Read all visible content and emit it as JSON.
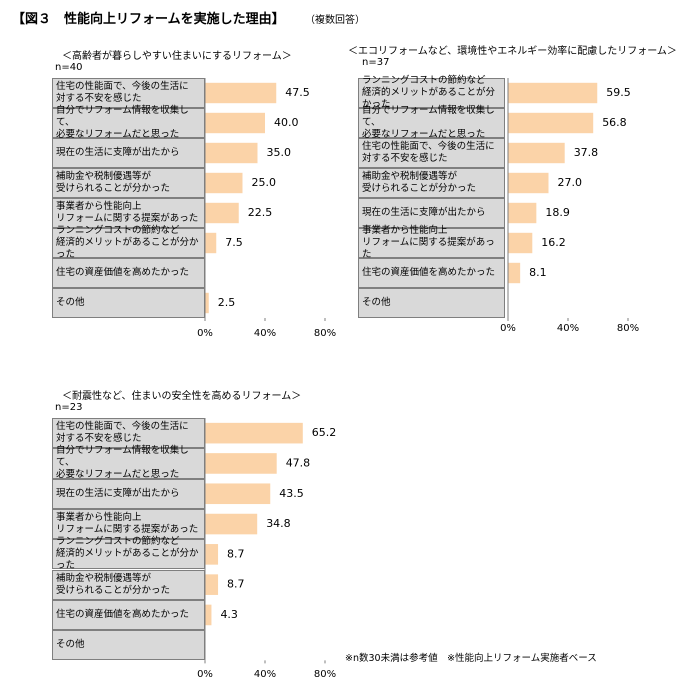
{
  "title": "【図３　性能向上リフォームを実施した理由】",
  "note": "（複数回答）",
  "footnote": "※n数30未満は参考値　※性能向上リフォーム実施者ベース",
  "chart_data": [
    {
      "type": "bar",
      "orientation": "horizontal",
      "subtitle": "＜高齢者が暮らしやすい住まいにするリフォーム＞",
      "n_label": "n=40",
      "categories": [
        "住宅の性能面で、今後の生活に\n対する不安を感じた",
        "自分でリフォーム情報を収集して、\n必要なリフォームだと思った",
        "現在の生活に支障が出たから",
        "補助金や税制優遇等が\n受けられることが分かった",
        "事業者から性能向上\nリフォームに関する提案があった",
        "ランニングコストの節約など\n経済的メリットがあることが分かった",
        "住宅の資産価値を高めたかった",
        "その他"
      ],
      "values": [
        47.5,
        40.0,
        35.0,
        25.0,
        22.5,
        7.5,
        null,
        2.5
      ],
      "value_labels": [
        "47.5",
        "40.0",
        "35.0",
        "25.0",
        "22.5",
        "7.5",
        null,
        "2.5"
      ],
      "color": "#fbd3a8",
      "xlim": [
        0,
        80
      ],
      "xticks": [
        {
          "value": 0,
          "label": "0%"
        },
        {
          "value": 40,
          "label": "40%"
        },
        {
          "value": 80,
          "label": "80%"
        }
      ]
    },
    {
      "type": "bar",
      "orientation": "horizontal",
      "subtitle": "＜エコリフォームなど、環境性やエネルギー効率に配慮したリフォーム＞",
      "n_label": "n=37",
      "categories": [
        "ランニングコストの節約など\n経済的メリットがあることが分かった",
        "自分でリフォーム情報を収集して、\n必要なリフォームだと思った",
        "住宅の性能面で、今後の生活に\n対する不安を感じた",
        "補助金や税制優遇等が\n受けられることが分かった",
        "現在の生活に支障が出たから",
        "事業者から性能向上\nリフォームに関する提案があった",
        "住宅の資産価値を高めたかった",
        "その他"
      ],
      "values": [
        59.5,
        56.8,
        37.8,
        27.0,
        18.9,
        16.2,
        8.1,
        null
      ],
      "value_labels": [
        "59.5",
        "56.8",
        "37.8",
        "27.0",
        "18.9",
        "16.2",
        "8.1",
        null
      ],
      "color": "#fbd3a8",
      "xlim": [
        0,
        80
      ],
      "xticks": [
        {
          "value": 0,
          "label": "0%"
        },
        {
          "value": 40,
          "label": "40%"
        },
        {
          "value": 80,
          "label": "80%"
        }
      ]
    },
    {
      "type": "bar",
      "orientation": "horizontal",
      "subtitle": "＜耐震性など、住まいの安全性を高めるリフォーム＞",
      "n_label": "n=23",
      "categories": [
        "住宅の性能面で、今後の生活に\n対する不安を感じた",
        "自分でリフォーム情報を収集して、\n必要なリフォームだと思った",
        "現在の生活に支障が出たから",
        "事業者から性能向上\nリフォームに関する提案があった",
        "ランニングコストの節約など\n経済的メリットがあることが分かった",
        "補助金や税制優遇等が\n受けられることが分かった",
        "住宅の資産価値を高めたかった",
        "その他"
      ],
      "values": [
        65.2,
        47.8,
        43.5,
        34.8,
        8.7,
        8.7,
        4.3,
        null
      ],
      "value_labels": [
        "65.2",
        "47.8",
        "43.5",
        "34.8",
        "8.7",
        "8.7",
        "4.3",
        null
      ],
      "color": "#fbd3a8",
      "xlim": [
        0,
        80
      ],
      "xticks": [
        {
          "value": 0,
          "label": "0%"
        },
        {
          "value": 40,
          "label": "40%"
        },
        {
          "value": 80,
          "label": "80%"
        }
      ]
    }
  ]
}
